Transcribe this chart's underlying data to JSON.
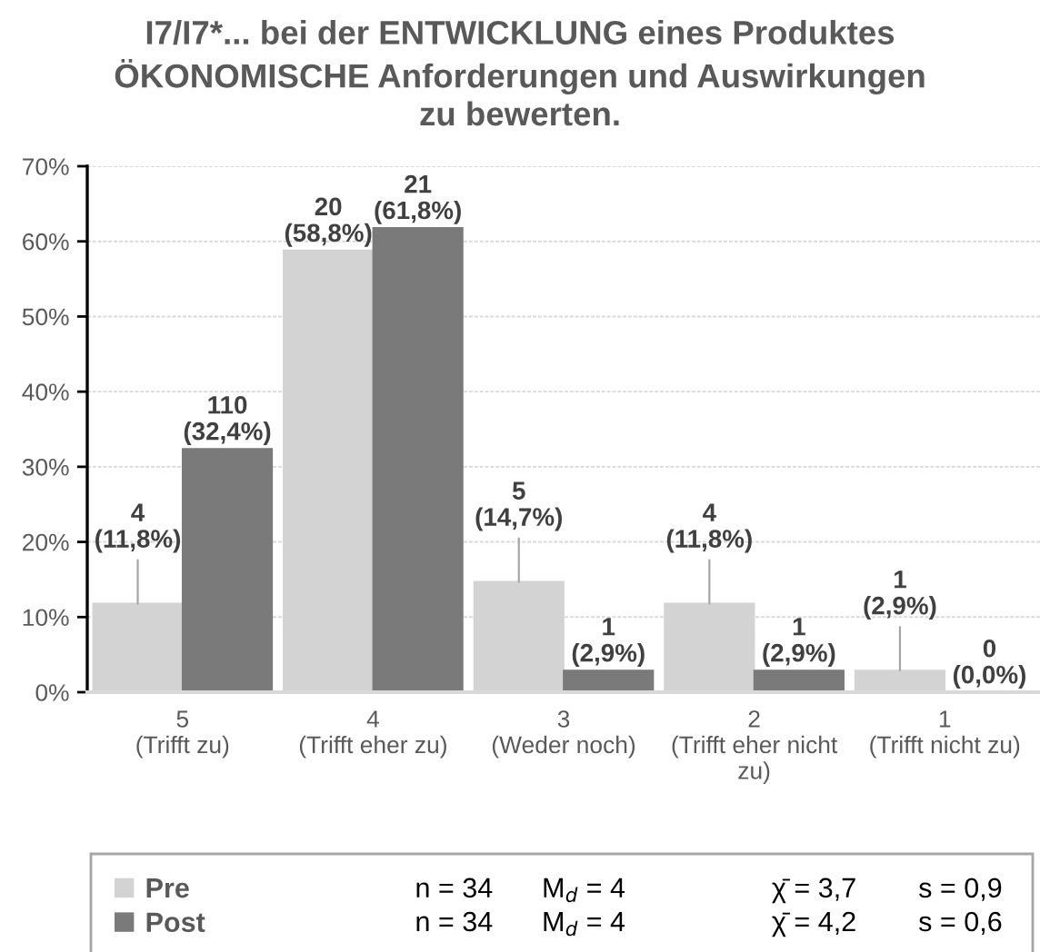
{
  "chart_data": {
    "type": "bar",
    "title": "I7/I7*... bei der ENTWICKLUNG eines Produktes\nÖKONOMISCHE Anforderungen und Auswirkungen\nzu bewerten.",
    "categories": [
      "5\n(Trifft zu)",
      "4\n(Trifft eher zu)",
      "3\n(Weder noch)",
      "2\n(Trifft eher nicht\nzu)",
      "1\n(Trifft nicht zu)"
    ],
    "series": [
      {
        "name": "Pre",
        "color": "#d3d3d3",
        "values": [
          11.8,
          58.8,
          14.7,
          11.8,
          2.9
        ],
        "value_labels": [
          "4\n(11,8%)",
          "20\n(58,8%)",
          "5\n(14,7%)",
          "4\n(11,8%)",
          "1\n(2,9%)"
        ]
      },
      {
        "name": "Post",
        "color": "#7a7a7a",
        "values": [
          32.4,
          61.8,
          2.9,
          2.9,
          0.0
        ],
        "value_labels": [
          "110\n(32,4%)",
          "21\n(61,8%)",
          "1\n(2,9%)",
          "1\n(2,9%)",
          "0\n(0,0%)"
        ]
      }
    ],
    "ylim": [
      0,
      70
    ],
    "yticks": [
      {
        "value": 0,
        "label": "0%"
      },
      {
        "value": 10,
        "label": "10%"
      },
      {
        "value": 20,
        "label": "20%"
      },
      {
        "value": 30,
        "label": "30%"
      },
      {
        "value": 40,
        "label": "40%"
      },
      {
        "value": 50,
        "label": "50%"
      },
      {
        "value": 60,
        "label": "60%"
      },
      {
        "value": 70,
        "label": "70%"
      }
    ],
    "grid": "y",
    "legend": "bottom",
    "annotations": [
      "n = 34",
      "M$_{d}$ = 4",
      "χ̄ = 3,7",
      "s = 0,9",
      "n = 34",
      "M$_{d}$ = 4",
      "χ̄ = 4,2",
      "s = 0,6"
    ]
  }
}
